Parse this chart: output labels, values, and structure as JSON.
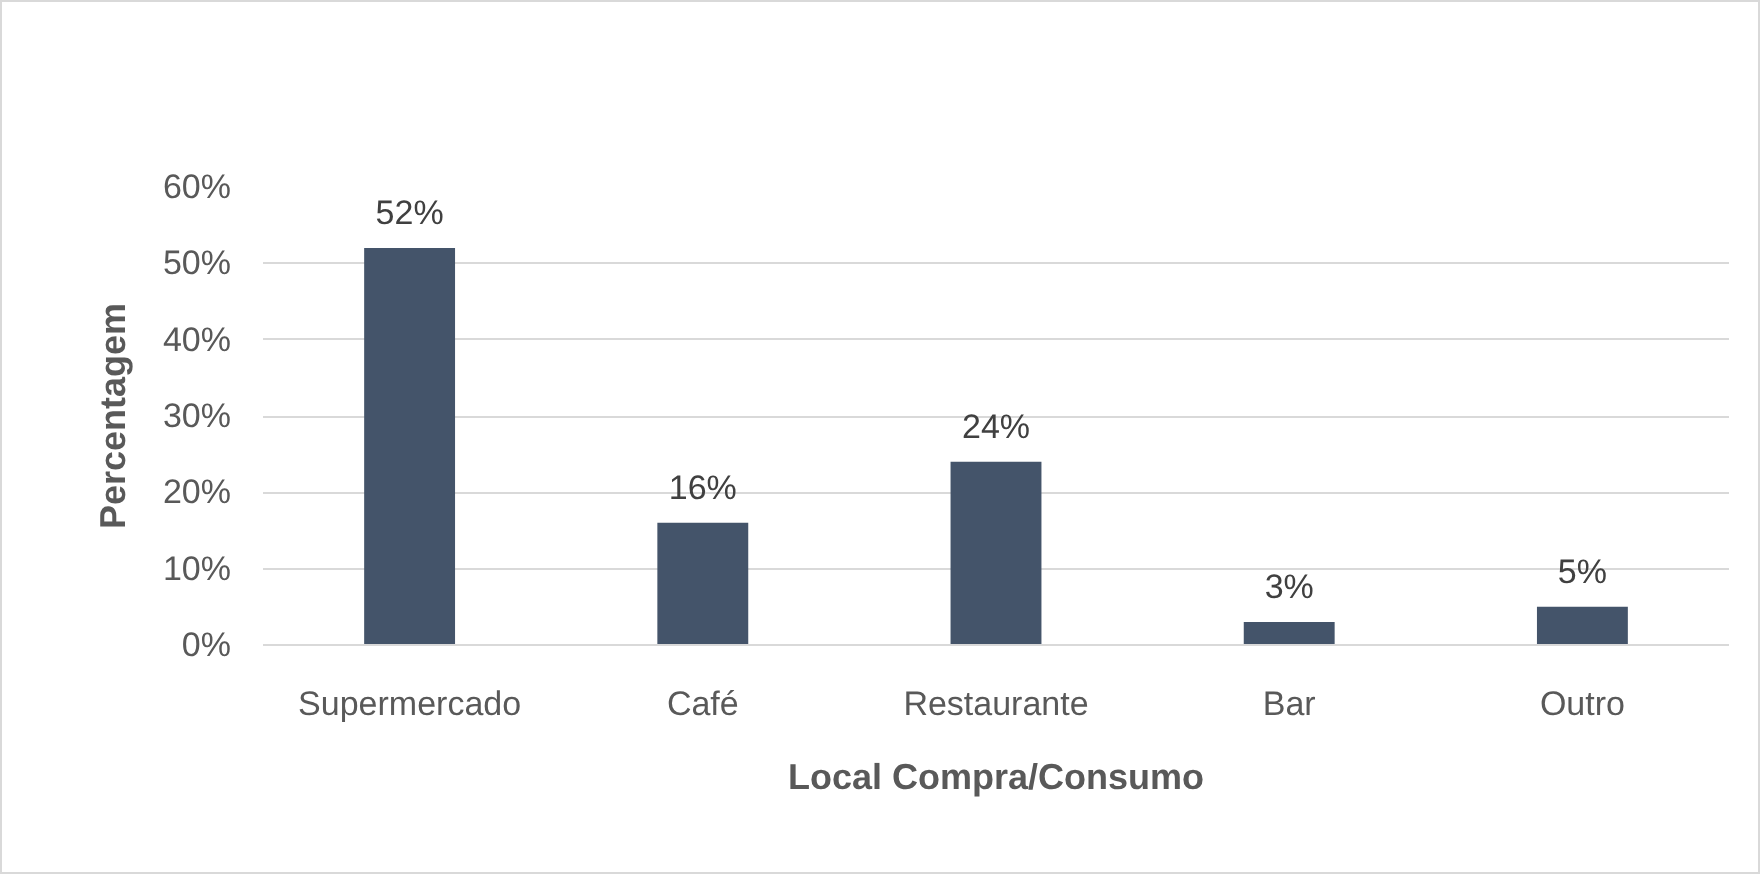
{
  "chart_data": {
    "type": "bar",
    "xlabel": "Local Compra/Consumo",
    "ylabel": "Percentagem",
    "categories": [
      "Supermercado",
      "Café",
      "Restaurante",
      "Bar",
      "Outro"
    ],
    "values": [
      52,
      16,
      24,
      3,
      5
    ],
    "color": "#44546a",
    "value_labels": [
      "52%",
      "16%",
      "24%",
      "3%",
      "5%"
    ],
    "ylim": [
      0,
      60
    ],
    "yticks": [
      {
        "value": 0,
        "label": "0%"
      },
      {
        "value": 10,
        "label": "10%"
      },
      {
        "value": 20,
        "label": "20%"
      },
      {
        "value": 30,
        "label": "30%"
      },
      {
        "value": 40,
        "label": "40%"
      },
      {
        "value": 50,
        "label": "50%"
      },
      {
        "value": 60,
        "label": "60%"
      }
    ],
    "grid": "y"
  }
}
